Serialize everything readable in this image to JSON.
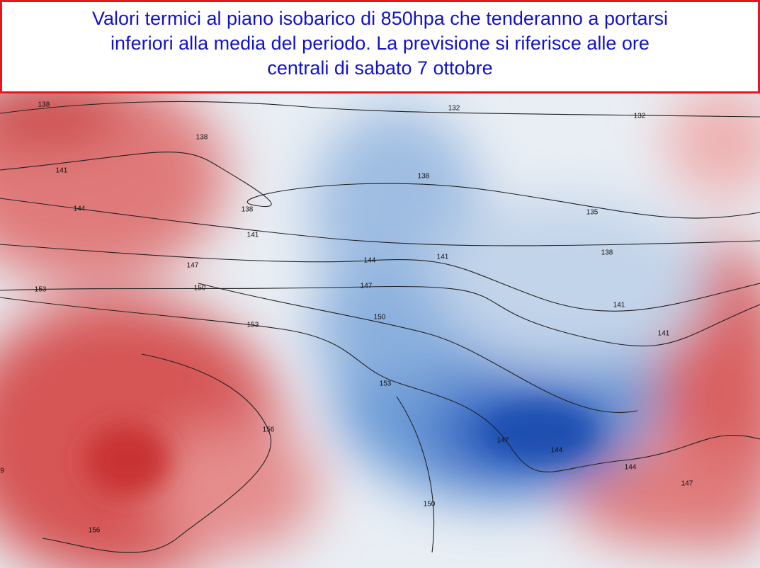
{
  "header": {
    "lines": [
      "Valori termici al piano isobarico di 850hpa che tenderanno a portarsi",
      "inferiori alla media del periodo. La previsione si riferisce alle ore",
      "centrali di sabato 7 ottobre"
    ]
  },
  "map": {
    "contour_labels": [
      138,
      132,
      132,
      138,
      141,
      138,
      144,
      138,
      135,
      141,
      138,
      141,
      144,
      147,
      147,
      153,
      150,
      141,
      150,
      153,
      141,
      153,
      156,
      147,
      144,
      144,
      9,
      147,
      150,
      156
    ]
  }
}
